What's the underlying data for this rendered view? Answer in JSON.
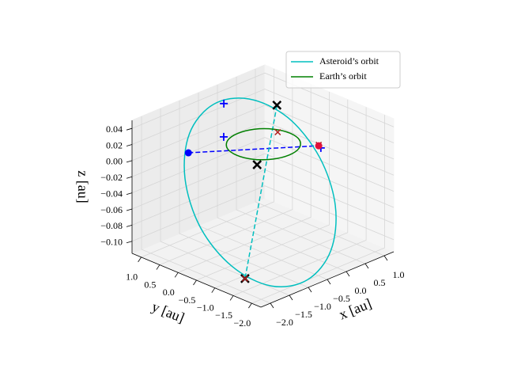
{
  "chart_data": {
    "type": "line3d",
    "xlabel": "x [au]",
    "ylabel": "y [au]",
    "zlabel": "z [au]",
    "xlim": [
      -2.25,
      1.25
    ],
    "ylim": [
      -2.25,
      1.25
    ],
    "zlim": [
      -0.115,
      0.05
    ],
    "xticks": [
      {
        "value": -2.0,
        "label": "−2.0"
      },
      {
        "value": -1.5,
        "label": "−1.5"
      },
      {
        "value": -1.0,
        "label": "−1.0"
      },
      {
        "value": -0.5,
        "label": "−0.5"
      },
      {
        "value": 0,
        "label": "0.0"
      },
      0.5,
      {
        "value": 1.0,
        "label": "1.0"
      }
    ],
    "yticks": [
      {
        "value": -2.0,
        "label": "−2.0"
      },
      {
        "value": -1.5,
        "label": "−1.5"
      },
      {
        "value": -1.0,
        "label": "−1.0"
      },
      {
        "value": -0.5,
        "label": "−0.5"
      },
      {
        "value": 0,
        "label": "0.0"
      },
      0.5,
      {
        "value": 1.0,
        "label": "1.0"
      }
    ],
    "zticks": [
      {
        "value": -0.1,
        "label": "−0.10"
      },
      {
        "value": -0.08,
        "label": "−0.08"
      },
      {
        "value": -0.06,
        "label": "−0.06"
      },
      {
        "value": -0.04,
        "label": "−0.04"
      },
      {
        "value": -0.02,
        "label": "−0.02"
      },
      {
        "value": 0,
        "label": "0.00"
      },
      0.02,
      0.04
    ],
    "grid": true,
    "legend": "upper right",
    "series": [
      {
        "name": "Asteroid’s orbit",
        "color": "#00bfbf",
        "x": [
          0.03,
          0.43,
          0.5,
          0.22,
          -0.32,
          -1.0,
          -1.61,
          -2.01,
          -2.08,
          -1.8,
          -1.26,
          -0.58
        ],
        "y": [
          -1.92,
          -1.08,
          -0.15,
          0.62,
          1.03,
          0.98,
          0.47,
          -0.36,
          -1.29,
          -2.07,
          -2.49,
          -2.43
        ],
        "z": [
          -0.04,
          -0.004,
          0.026,
          0.04,
          0.036,
          0.014,
          -0.02,
          -0.057,
          -0.086,
          -0.101,
          -0.096,
          -0.074
        ]
      },
      {
        "name": "Earth’s orbit",
        "color": "#008000",
        "x": [
          0.7,
          0.61,
          0.35,
          0,
          -0.35,
          -0.61,
          -0.7,
          -0.61,
          -0.35,
          0,
          0.35,
          0.61
        ],
        "y": [
          0,
          0.35,
          0.61,
          0.7,
          0.61,
          0.35,
          0,
          -0.35,
          -0.61,
          -0.7,
          -0.61,
          -0.35
        ],
        "z": [
          0,
          0,
          0,
          0,
          0,
          0,
          0,
          0,
          0,
          0,
          0,
          0
        ]
      }
    ],
    "lines": [
      {
        "color": "#0000ff",
        "x": [
          -1.26,
          0.68
        ],
        "y": [
          0.74,
          -0.8
        ],
        "z": [
          0,
          0
        ]
      },
      {
        "color": "#00bfbf",
        "x": [
          0.52,
          -1.99
        ],
        "y": [
          0.17,
          -1.55
        ],
        "z": [
          0.035,
          -0.098
        ]
      }
    ],
    "markers": [
      {
        "marker": "+",
        "color": "#0000ff",
        "x": [
          -0.18,
          -0.29,
          0.64
        ],
        "y": [
          0.89,
          0.78,
          -0.9
        ],
        "z": [
          0.037,
          0,
          0
        ]
      },
      {
        "marker": "x",
        "color": "#000000",
        "x": [
          0.52,
          -0.73,
          -1.99
        ],
        "y": [
          0.17,
          -0.58,
          -1.55
        ],
        "z": [
          0.035,
          0,
          -0.098
        ]
      },
      {
        "marker": "x",
        "color": "#b22222",
        "x": [
          0.57,
          -1.99,
          0.71
        ],
        "y": [
          0.2,
          -1.55,
          -0.77
        ],
        "z": [
          0,
          -0.098,
          0
        ]
      },
      {
        "marker": "o",
        "color": "#0000ff",
        "x": [
          -1.26
        ],
        "y": [
          0.74
        ],
        "z": [
          0
        ]
      },
      {
        "marker": "o",
        "color": "#e0103a",
        "x": [
          0.68
        ],
        "y": [
          -0.8
        ],
        "z": [
          0
        ]
      }
    ]
  }
}
